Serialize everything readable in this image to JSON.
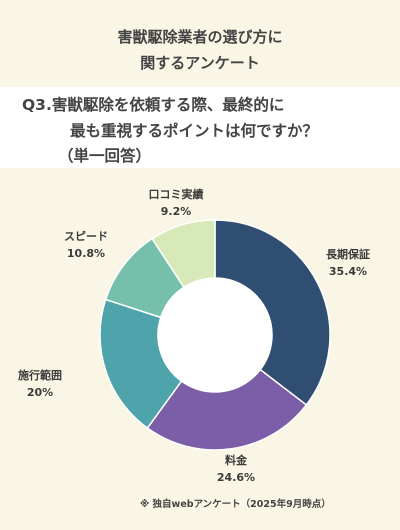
{
  "title": {
    "line1": "害獣駆除業者の選び方に",
    "line2": "関するアンケート"
  },
  "question": {
    "line1": "Q3.害獣駆除を依頼する際、最終的に",
    "line2": "最も重視するポイントは何ですか？",
    "line3": "（単一回答）"
  },
  "footnote": "※ 独自webアンケート（2025年9月時点）",
  "chart_data": {
    "type": "pie",
    "style": "donut",
    "categories": [
      "長期保証",
      "料金",
      "施行範囲",
      "スピード",
      "口コミ実績"
    ],
    "values": [
      35.4,
      24.6,
      20,
      10.8,
      9.2
    ],
    "value_labels": [
      "35.4%",
      "24.6%",
      "20%",
      "10.8%",
      "9.2%"
    ],
    "colors": [
      "#2f4e72",
      "#7b5ea7",
      "#4fa3ab",
      "#76bfaa",
      "#d7e9b9"
    ],
    "start": "12 o'clock",
    "direction": "clockwise"
  }
}
